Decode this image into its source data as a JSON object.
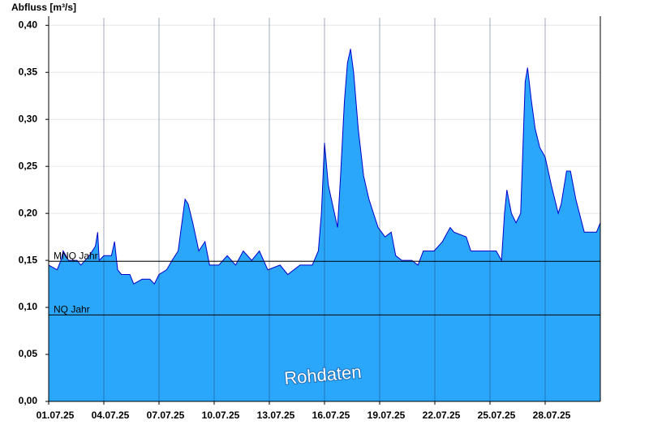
{
  "chart_data": {
    "type": "area",
    "y_axis_label": "Abfluss [m³/s]",
    "annotation": "Rohdaten",
    "color": "#2aa7fb",
    "line_color": "#0000cc",
    "grid": true,
    "xlim": [
      "2025-07-01T00:00",
      "2025-07-31T00:00"
    ],
    "ylim": [
      0,
      0.408
    ],
    "yticks": [
      {
        "value": 0,
        "label": "0,00"
      },
      {
        "value": 0.05,
        "label": "0,05"
      },
      {
        "value": 0.1,
        "label": "0,10"
      },
      {
        "value": 0.15,
        "label": "0,15"
      },
      {
        "value": 0.2,
        "label": "0,20"
      },
      {
        "value": 0.25,
        "label": "0,25"
      },
      {
        "value": 0.3,
        "label": "0,30"
      },
      {
        "value": 0.35,
        "label": "0,35"
      },
      {
        "value": 0.4,
        "label": "0,40"
      }
    ],
    "xticks": [
      {
        "value": "2025-07-01T00:00",
        "label": "01.07.25"
      },
      {
        "value": "2025-07-04T00:00",
        "label": "04.07.25"
      },
      {
        "value": "2025-07-07T00:00",
        "label": "07.07.25"
      },
      {
        "value": "2025-07-10T00:00",
        "label": "10.07.25"
      },
      {
        "value": "2025-07-13T00:00",
        "label": "13.07.25"
      },
      {
        "value": "2025-07-16T00:00",
        "label": "16.07.25"
      },
      {
        "value": "2025-07-19T00:00",
        "label": "19.07.25"
      },
      {
        "value": "2025-07-22T00:00",
        "label": "22.07.25"
      },
      {
        "value": "2025-07-25T00:00",
        "label": "25.07.25"
      },
      {
        "value": "2025-07-28T00:00",
        "label": "28.07.25"
      }
    ],
    "reference_lines": [
      {
        "label": "MNQ Jahr",
        "value": 0.149
      },
      {
        "label": "NQ Jahr",
        "value": 0.092
      }
    ],
    "x": [
      "2025-07-01T00:00",
      "2025-07-01T11:00",
      "2025-07-01T16:00",
      "2025-07-01T19:00",
      "2025-07-02T02:00",
      "2025-07-02T13:00",
      "2025-07-02T18:00",
      "2025-07-03T05:00",
      "2025-07-03T13:00",
      "2025-07-03T16:00",
      "2025-07-03T18:00",
      "2025-07-04T00:00",
      "2025-07-04T10:00",
      "2025-07-04T14:00",
      "2025-07-04T18:00",
      "2025-07-04T23:00",
      "2025-07-05T10:00",
      "2025-07-05T15:00",
      "2025-07-06T02:00",
      "2025-07-06T12:00",
      "2025-07-06T18:00",
      "2025-07-07T00:00",
      "2025-07-07T10:00",
      "2025-07-07T17:00",
      "2025-07-08T01:00",
      "2025-07-08T10:00",
      "2025-07-08T14:00",
      "2025-07-08T20:00",
      "2025-07-09T04:00",
      "2025-07-09T12:00",
      "2025-07-09T18:00",
      "2025-07-10T00:00",
      "2025-07-10T06:00",
      "2025-07-10T17:00",
      "2025-07-11T04:00",
      "2025-07-11T14:00",
      "2025-07-12T01:00",
      "2025-07-12T11:00",
      "2025-07-12T22:00",
      "2025-07-13T14:00",
      "2025-07-14T00:00",
      "2025-07-14T16:00",
      "2025-07-15T08:00",
      "2025-07-15T16:00",
      "2025-07-15T20:00",
      "2025-07-16T00:00",
      "2025-07-16T05:00",
      "2025-07-16T13:00",
      "2025-07-16T17:00",
      "2025-07-16T21:00",
      "2025-07-17T02:00",
      "2025-07-17T06:00",
      "2025-07-17T10:00",
      "2025-07-17T14:00",
      "2025-07-17T20:00",
      "2025-07-18T03:00",
      "2025-07-18T10:00",
      "2025-07-18T16:00",
      "2025-07-18T22:00",
      "2025-07-19T07:00",
      "2025-07-19T15:00",
      "2025-07-19T21:00",
      "2025-07-20T05:00",
      "2025-07-20T18:00",
      "2025-07-21T02:00",
      "2025-07-21T09:00",
      "2025-07-21T23:00",
      "2025-07-22T10:00",
      "2025-07-22T20:00",
      "2025-07-23T01:00",
      "2025-07-23T17:00",
      "2025-07-23T23:00",
      "2025-07-24T20:00",
      "2025-07-25T08:00",
      "2025-07-25T15:00",
      "2025-07-25T19:00",
      "2025-07-25T22:00",
      "2025-07-26T04:00",
      "2025-07-26T10:00",
      "2025-07-26T16:00",
      "2025-07-26T22:00",
      "2025-07-27T01:00",
      "2025-07-27T06:00",
      "2025-07-27T11:00",
      "2025-07-27T17:00",
      "2025-07-28T00:00",
      "2025-07-28T08:00",
      "2025-07-28T17:00",
      "2025-07-28T21:00",
      "2025-07-29T04:00",
      "2025-07-29T09:00",
      "2025-07-29T16:00",
      "2025-07-30T03:00",
      "2025-07-30T19:00",
      "2025-07-31T00:00"
    ],
    "values": [
      0.145,
      0.14,
      0.15,
      0.16,
      0.15,
      0.15,
      0.145,
      0.155,
      0.165,
      0.18,
      0.15,
      0.155,
      0.155,
      0.17,
      0.14,
      0.135,
      0.135,
      0.125,
      0.13,
      0.13,
      0.125,
      0.135,
      0.14,
      0.15,
      0.16,
      0.215,
      0.21,
      0.19,
      0.16,
      0.17,
      0.145,
      0.145,
      0.145,
      0.155,
      0.145,
      0.16,
      0.15,
      0.16,
      0.14,
      0.145,
      0.135,
      0.145,
      0.145,
      0.16,
      0.2,
      0.275,
      0.23,
      0.2,
      0.185,
      0.24,
      0.32,
      0.36,
      0.375,
      0.35,
      0.29,
      0.24,
      0.215,
      0.2,
      0.185,
      0.175,
      0.18,
      0.155,
      0.15,
      0.15,
      0.145,
      0.16,
      0.16,
      0.17,
      0.185,
      0.18,
      0.175,
      0.16,
      0.16,
      0.16,
      0.15,
      0.2,
      0.225,
      0.2,
      0.19,
      0.2,
      0.34,
      0.355,
      0.32,
      0.29,
      0.27,
      0.26,
      0.23,
      0.2,
      0.21,
      0.245,
      0.245,
      0.215,
      0.18,
      0.18,
      0.19
    ]
  }
}
